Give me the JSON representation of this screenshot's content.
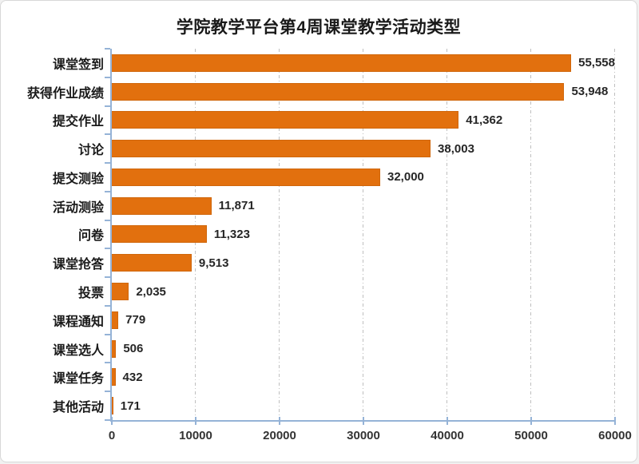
{
  "chart_data": {
    "type": "bar",
    "orientation": "horizontal",
    "title": "学院教学平台第4周课堂教学活动类型",
    "categories": [
      "课堂签到",
      "获得作业成绩",
      "提交作业",
      "讨论",
      "提交测验",
      "活动测验",
      "问卷",
      "课堂抢答",
      "投票",
      "课程通知",
      "课堂选人",
      "课堂任务",
      "其他活动"
    ],
    "values": [
      55558,
      53948,
      41362,
      38003,
      32000,
      11871,
      11323,
      9513,
      2035,
      779,
      506,
      432,
      171
    ],
    "value_labels": [
      "55,558",
      "53,948",
      "41,362",
      "38,003",
      "32,000",
      "11,871",
      "11,323",
      "9,513",
      "2,035",
      "779",
      "506",
      "432",
      "171"
    ],
    "xlabel": "",
    "ylabel": "",
    "xlim": [
      0,
      60000
    ],
    "x_ticks": [
      0,
      10000,
      20000,
      30000,
      40000,
      50000,
      60000
    ],
    "x_tick_labels": [
      "0",
      "10000",
      "20000",
      "30000",
      "40000",
      "50000",
      "60000"
    ],
    "grid": "vertical-dash-dot",
    "legend_position": "none",
    "colors": {
      "bar": "#E2700E",
      "axis_line": "#95B3D7",
      "gridline": "#BFBFBF",
      "title_text": "#1A1A1A",
      "category_text": "#1A1A1A",
      "value_text": "#262626",
      "tick_text": "#333333"
    }
  }
}
